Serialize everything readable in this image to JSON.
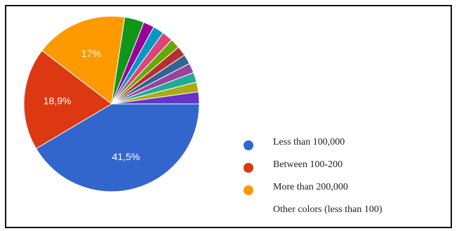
{
  "chart_data": {
    "type": "pie",
    "title": "",
    "slices": [
      {
        "label": "Less than 100,000",
        "value": 41.5,
        "display": "41,5%",
        "color": "#3366cc"
      },
      {
        "label": "Between 100-200",
        "value": 18.9,
        "display": "18,9%",
        "color": "#dc3912"
      },
      {
        "label": "More than 200,000",
        "value": 17.0,
        "display": "17%",
        "color": "#ff9900"
      },
      {
        "value": 3.6,
        "color": "#109618"
      },
      {
        "value": 2.0,
        "color": "#990099"
      },
      {
        "value": 2.0,
        "color": "#0099c6"
      },
      {
        "value": 2.0,
        "color": "#dd4477"
      },
      {
        "value": 1.8,
        "color": "#66aa00"
      },
      {
        "value": 1.8,
        "color": "#b82e2e"
      },
      {
        "value": 1.8,
        "color": "#316395"
      },
      {
        "value": 1.8,
        "color": "#994499"
      },
      {
        "value": 1.8,
        "color": "#22aa99"
      },
      {
        "value": 1.8,
        "color": "#aaaa11"
      },
      {
        "value": 2.2,
        "color": "#6633cc"
      }
    ],
    "legend": [
      {
        "label": "Less than 100,000",
        "color": "#3366cc"
      },
      {
        "label": "Between 100-200",
        "color": "#dc3912"
      },
      {
        "label": "More than 200,000",
        "color": "#ff9900"
      },
      {
        "label": "Other colors (less than 100)",
        "color": ""
      }
    ],
    "legend_position": "right"
  }
}
